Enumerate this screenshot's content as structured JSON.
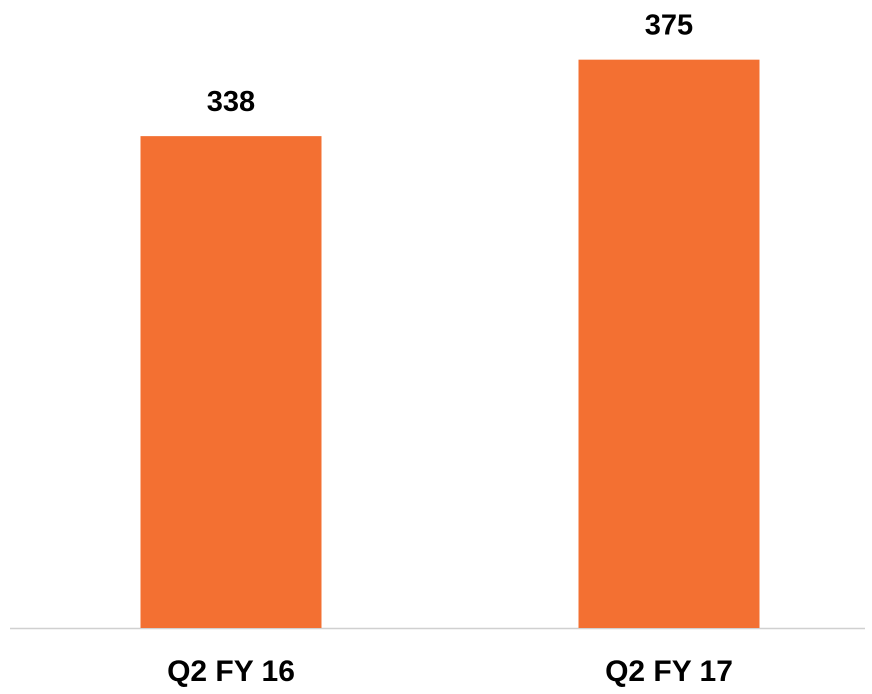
{
  "chart_data": {
    "type": "bar",
    "categories": [
      "Q2 FY 16",
      "Q2 FY 17"
    ],
    "values": [
      338,
      375
    ],
    "color": "#f37032",
    "ylim": [
      100,
      400
    ]
  }
}
